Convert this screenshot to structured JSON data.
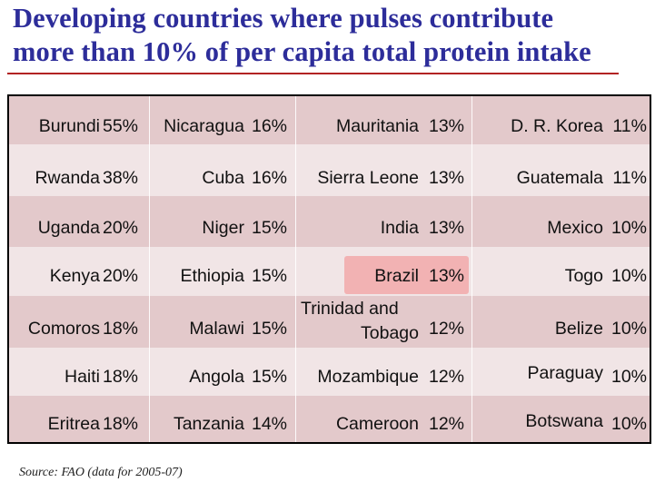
{
  "title": {
    "line1": "Developing countries where pulses contribute",
    "line2": "more than 10% of per capita total protein intake"
  },
  "colors": {
    "title": "#2d2d9a",
    "rule": "#b22222",
    "row_dark": "#e3c9cb",
    "row_light": "#f1e5e6",
    "highlight": "#f2a9a9"
  },
  "rows": [
    [
      [
        "Burundi",
        "55%"
      ],
      [
        "Nicaragua",
        "16%"
      ],
      [
        "Mauritania",
        "13%"
      ],
      [
        "D. R. Korea",
        "11%"
      ]
    ],
    [
      [
        "Rwanda",
        "38%"
      ],
      [
        "Cuba",
        "16%"
      ],
      [
        "Sierra Leone",
        "13%"
      ],
      [
        "Guatemala",
        "11%"
      ]
    ],
    [
      [
        "Uganda",
        "20%"
      ],
      [
        "Niger",
        "15%"
      ],
      [
        "India",
        "13%"
      ],
      [
        "Mexico",
        "10%"
      ]
    ],
    [
      [
        "Kenya",
        "20%"
      ],
      [
        "Ethiopia",
        "15%"
      ],
      [
        "Brazil",
        "13%"
      ],
      [
        "Togo",
        "10%"
      ]
    ],
    [
      [
        "Comoros",
        "18%"
      ],
      [
        "Malawi",
        "15%"
      ],
      [
        "Trinidad and Tobago",
        "12%"
      ],
      [
        "Belize",
        "10%"
      ]
    ],
    [
      [
        "Haiti",
        "18%"
      ],
      [
        "Angola",
        "15%"
      ],
      [
        "Mozambique",
        "12%"
      ],
      [
        "Paraguay",
        "10%"
      ]
    ],
    [
      [
        "Eritrea",
        "18%"
      ],
      [
        "Tanzania",
        "14%"
      ],
      [
        "Cameroon",
        "12%"
      ],
      [
        "Botswana",
        "10%"
      ]
    ]
  ],
  "highlighted_country": "Brazil",
  "source": "Source: FAO (data for 2005-07)"
}
